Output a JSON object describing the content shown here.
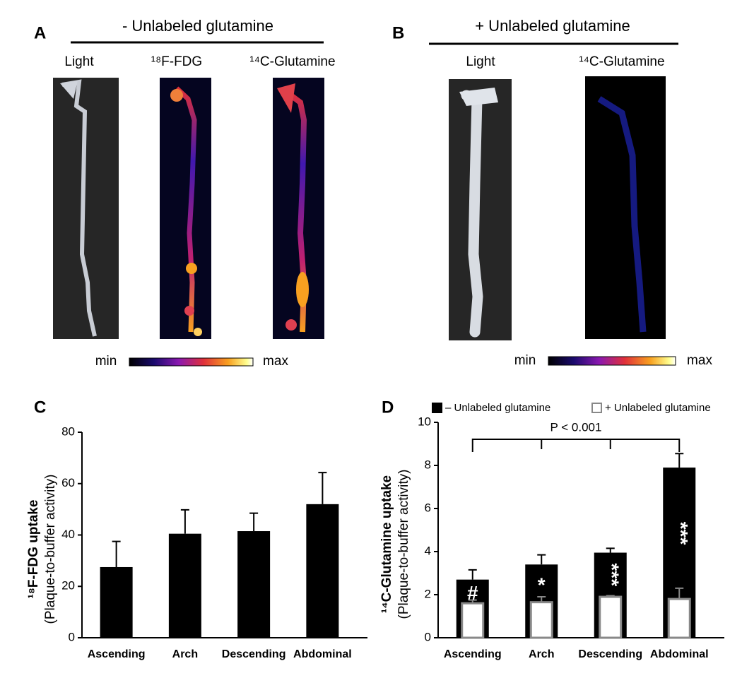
{
  "panels": [
    {
      "label": "A",
      "heading": "- Unlabeled  glutamine",
      "images": [
        "Light",
        "¹⁸F-FDG",
        "¹⁴C-Glutamine"
      ],
      "scale": [
        "min",
        "max"
      ]
    },
    {
      "label": "B",
      "heading": "+ Unlabeled  glutamine",
      "images": [
        "Light",
        "¹⁴C-Glutamine"
      ],
      "scale": [
        "min",
        "max"
      ]
    }
  ],
  "chart_data": [
    {
      "type": "bar",
      "panel": "C",
      "ylabel": "¹⁸F-FDG uptake",
      "ylabel_sub": "(Plaque-to-buffer activity)",
      "categories": [
        "Ascending",
        "Arch",
        "Descending",
        "Abdominal"
      ],
      "values": [
        27.5,
        40.5,
        41.5,
        52
      ],
      "errors": [
        10,
        9.3,
        7,
        12.3
      ],
      "color": "#000000",
      "ylim": [
        0,
        80
      ],
      "yticks": [
        0,
        20,
        40,
        60,
        80
      ]
    },
    {
      "type": "overlay_bar",
      "panel": "D",
      "ylabel": "¹⁴C-Glutamine uptake",
      "ylabel_sub": "(Plaque-to-buffer activity)",
      "categories": [
        "Ascending",
        "Arch",
        "Descending",
        "Abdominal"
      ],
      "series": [
        {
          "name": "– Unlabeled glutamine",
          "color": "#000000",
          "values": [
            2.7,
            3.4,
            3.95,
            7.9
          ],
          "errors": [
            0.45,
            0.45,
            0.2,
            0.65
          ]
        },
        {
          "name": "+ Unlabeled glutamine",
          "color": "#ffffff",
          "values": [
            1.6,
            1.65,
            1.9,
            1.8
          ],
          "errors": [
            0.15,
            0.25,
            0.05,
            0.5
          ]
        }
      ],
      "annotations": [
        "#",
        "*",
        "***",
        "***"
      ],
      "bracket_label": "P < 0.001",
      "ylim": [
        0,
        10
      ],
      "yticks": [
        0,
        2,
        4,
        6,
        8,
        10
      ]
    }
  ]
}
